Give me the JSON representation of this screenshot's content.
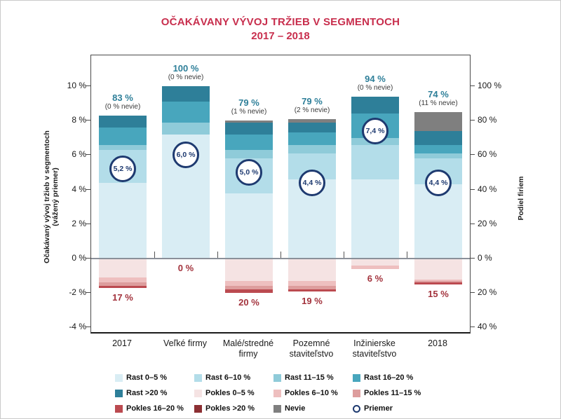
{
  "title": {
    "line1": "OČAKÁVANY VÝVOJ TRŽIEB V SEGMENTOCH",
    "line2": "2017 – 2018",
    "color": "#c82e4d"
  },
  "chart_data": {
    "type": "bar",
    "subtype": "diverging-stacked-percent",
    "title": "OČAKÁVANY VÝVOJ TRŽIEB V SEGMENTOCH",
    "subtitle": "2017 – 2018",
    "grid": "off",
    "left_axis": {
      "title_line1": "Očakávaný vývoj tržieb v segmentoch",
      "title_line2": "(vážený priemer)",
      "range": [
        -4,
        10
      ],
      "ticks": [
        {
          "v": 10,
          "label": "10 %"
        },
        {
          "v": 8,
          "label": "8 %"
        },
        {
          "v": 6,
          "label": "6 %"
        },
        {
          "v": 4,
          "label": "4 %"
        },
        {
          "v": 2,
          "label": "2 %"
        },
        {
          "v": 0,
          "label": "0 %"
        },
        {
          "v": -2,
          "label": "-2 %"
        },
        {
          "v": -4,
          "label": "-4 %"
        }
      ]
    },
    "right_axis": {
      "title": "Podiel firiem",
      "range_note": "share of firms, 0–100 % up and 0–40 % down",
      "ticks": [
        {
          "v": 10,
          "label": "100 %"
        },
        {
          "v": 8,
          "label": "80 %"
        },
        {
          "v": 6,
          "label": "60 %"
        },
        {
          "v": 4,
          "label": "40 %"
        },
        {
          "v": 2,
          "label": "20 %"
        },
        {
          "v": 0,
          "label": "0 %"
        },
        {
          "v": -2,
          "label": "20 %"
        },
        {
          "v": -4,
          "label": "40 %"
        }
      ]
    },
    "colors": {
      "g0_5": "#d9edf4",
      "g6_10": "#b3dde9",
      "g11_15": "#8fcbd9",
      "g16_20": "#48a6bd",
      "g20": "#2e7f99",
      "d0_5": "#f5e3e3",
      "d6_10": "#eebfbf",
      "d11_15": "#dd9d9d",
      "d16_20": "#bb4a50",
      "d20": "#8c2f33",
      "nevie": "#7f7f7f",
      "priemer": "#1e3a70",
      "top_label": "#2e7f99",
      "bottom_label": "#a3333d",
      "zero_line": "#8a9099"
    },
    "growth_order": [
      "g0_5",
      "g6_10",
      "g11_15",
      "g16_20",
      "g20",
      "nevie"
    ],
    "decline_order": [
      "d0_5",
      "d6_10",
      "d11_15",
      "d16_20",
      "d20"
    ],
    "categories": [
      {
        "label_lines": [
          "2017"
        ],
        "growth_total_label": "83 %",
        "nevie_note": "(0 % nevie)",
        "average": 5.2,
        "average_label": "5,2 %",
        "decline_total_label": "17 %",
        "segments": {
          "g0_5": 44,
          "g6_10": 19,
          "g11_15": 3,
          "g16_20": 10,
          "g20": 7,
          "nevie": 0,
          "d0_5": 11,
          "d6_10": 3,
          "d11_15": 2,
          "d16_20": 1,
          "d20": 0
        }
      },
      {
        "label_lines": [
          "Veľké firmy"
        ],
        "growth_total_label": "100 %",
        "nevie_note": "(0 % nevie)",
        "average": 6.0,
        "average_label": "6,0 %",
        "decline_total_label": "0 %",
        "segments": {
          "g0_5": 72,
          "g6_10": 0,
          "g11_15": 7,
          "g16_20": 12,
          "g20": 9,
          "nevie": 0,
          "d0_5": 0,
          "d6_10": 0,
          "d11_15": 0,
          "d16_20": 0,
          "d20": 0
        }
      },
      {
        "label_lines": [
          "Malé/stredné",
          "firmy"
        ],
        "growth_total_label": "79 %",
        "nevie_note": "(1 % nevie)",
        "average": 5.0,
        "average_label": "5,0 %",
        "decline_total_label": "20 %",
        "segments": {
          "g0_5": 38,
          "g6_10": 20,
          "g11_15": 5,
          "g16_20": 9,
          "g20": 7,
          "nevie": 1,
          "d0_5": 13,
          "d6_10": 3,
          "d11_15": 2,
          "d16_20": 2,
          "d20": 0
        }
      },
      {
        "label_lines": [
          "Pozemné",
          "staviteľstvo"
        ],
        "growth_total_label": "79 %",
        "nevie_note": "(2 % nevie)",
        "average": 4.4,
        "average_label": "4,4 %",
        "decline_total_label": "19 %",
        "segments": {
          "g0_5": 46,
          "g6_10": 15,
          "g11_15": 5,
          "g16_20": 7,
          "g20": 6,
          "nevie": 2,
          "d0_5": 13,
          "d6_10": 3,
          "d11_15": 2,
          "d16_20": 1,
          "d20": 0
        }
      },
      {
        "label_lines": [
          "Inžinierske",
          "staviteľstvo"
        ],
        "growth_total_label": "94 %",
        "nevie_note": "(0 % nevie)",
        "average": 7.4,
        "average_label": "7,4 %",
        "decline_total_label": "6 %",
        "segments": {
          "g0_5": 46,
          "g6_10": 20,
          "g11_15": 4,
          "g16_20": 14,
          "g20": 10,
          "nevie": 0,
          "d0_5": 4,
          "d6_10": 2,
          "d11_15": 0,
          "d16_20": 0,
          "d20": 0
        }
      },
      {
        "label_lines": [
          "2018"
        ],
        "growth_total_label": "74 %",
        "nevie_note": "(11 % nevie)",
        "average": 4.4,
        "average_label": "4,4 %",
        "decline_total_label": "15 %",
        "segments": {
          "g0_5": 43,
          "g6_10": 15,
          "g11_15": 3,
          "g16_20": 5,
          "g20": 8,
          "nevie": 11,
          "d0_5": 12,
          "d6_10": 1,
          "d11_15": 1,
          "d16_20": 1,
          "d20": 0
        }
      }
    ],
    "legend": [
      {
        "key": "g0_5",
        "label": "Rast 0–5 %"
      },
      {
        "key": "g6_10",
        "label": "Rast 6–10 %"
      },
      {
        "key": "g11_15",
        "label": "Rast 11–15 %"
      },
      {
        "key": "g16_20",
        "label": "Rast 16–20 %"
      },
      {
        "key": "g20",
        "label": "Rast >20 %"
      },
      {
        "key": "d0_5",
        "label": "Pokles 0–5 %"
      },
      {
        "key": "d6_10",
        "label": "Pokles 6–10 %"
      },
      {
        "key": "d11_15",
        "label": "Pokles 11–15 %"
      },
      {
        "key": "d16_20",
        "label": "Pokles 16–20 %"
      },
      {
        "key": "d20",
        "label": "Pokles >20 %"
      },
      {
        "key": "nevie",
        "label": "Nevie"
      },
      {
        "key": "priemer",
        "label": "Priemer",
        "icon": "circle-outline"
      }
    ]
  }
}
